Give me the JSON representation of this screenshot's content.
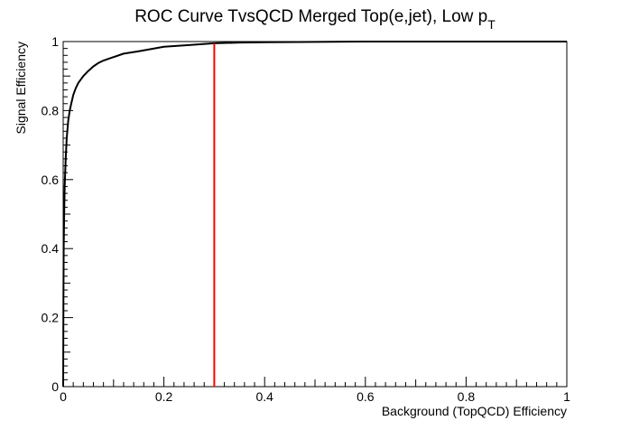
{
  "chart_data": {
    "type": "line",
    "title": "ROC Curve TvsQCD Merged Top(e,jet), Low p",
    "title_subscript": "T",
    "xlabel": "Background (TopQCD) Efficiency",
    "ylabel": "Signal Efficiency",
    "xlim": [
      0,
      1
    ],
    "ylim": [
      0,
      1
    ],
    "grid": false,
    "x_ticks": [
      "0",
      "0.2",
      "0.4",
      "0.6",
      "0.8",
      "1"
    ],
    "y_ticks": [
      "0",
      "0.2",
      "0.4",
      "0.6",
      "0.8",
      "1"
    ],
    "series": [
      {
        "color": "#000000",
        "x": [
          0.0,
          0.0005,
          0.001,
          0.002,
          0.003,
          0.005,
          0.007,
          0.01,
          0.013,
          0.016,
          0.02,
          0.025,
          0.03,
          0.04,
          0.05,
          0.06,
          0.07,
          0.08,
          0.09,
          0.1,
          0.12,
          0.15,
          0.2,
          0.25,
          0.3,
          0.35,
          0.4,
          0.5,
          0.6,
          0.7,
          0.8,
          0.9,
          1.0
        ],
        "y": [
          0.0,
          0.25,
          0.4,
          0.5,
          0.58,
          0.66,
          0.72,
          0.77,
          0.8,
          0.82,
          0.845,
          0.865,
          0.88,
          0.9,
          0.915,
          0.928,
          0.938,
          0.945,
          0.95,
          0.955,
          0.965,
          0.972,
          0.985,
          0.99,
          0.995,
          0.997,
          0.998,
          0.999,
          1.0,
          1.0,
          1.0,
          1.0,
          1.0
        ]
      }
    ],
    "vertical_marker": {
      "x": 0.3,
      "color": "#ff0000"
    }
  }
}
